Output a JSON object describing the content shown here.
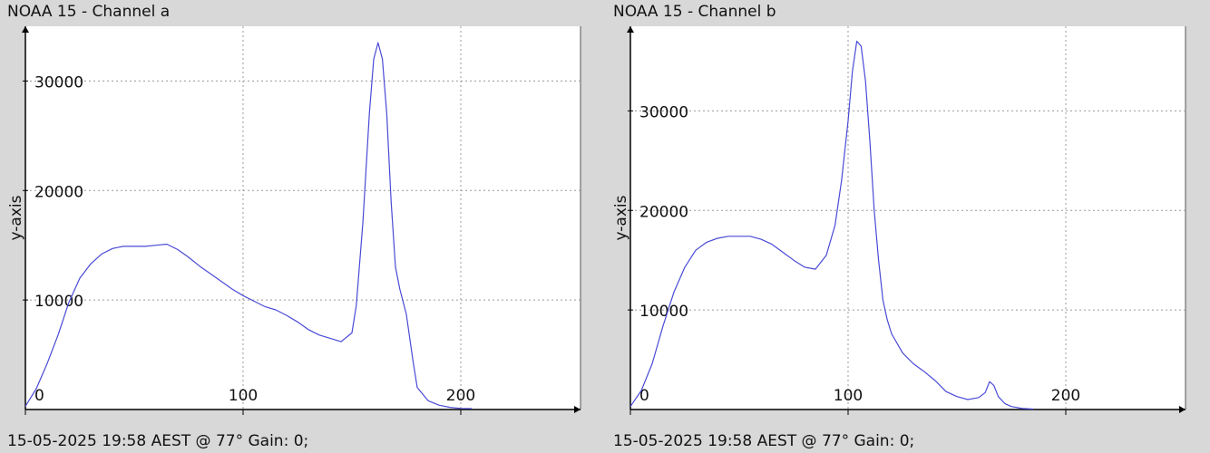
{
  "panels": [
    {
      "title": "NOAA 15 - Channel a",
      "footer": "15-05-2025 19:58 AEST @ 77° Gain: 0;"
    },
    {
      "title": "NOAA 15 - Channel b",
      "footer": "15-05-2025 19:58 AEST @ 77° Gain: 0;"
    }
  ],
  "colors": {
    "series": "#4a4ad6",
    "grid": "#9a9a9a",
    "axis": "#000000",
    "plot_bg": "#ffffff",
    "window_bg": "#d8d8d8"
  },
  "chart_data": [
    {
      "type": "line",
      "title": "NOAA 15 - Channel a",
      "xlabel": "",
      "ylabel": "y-axis",
      "xlim": [
        0,
        255
      ],
      "ylim": [
        0,
        35000
      ],
      "xticks": [
        0,
        100,
        200
      ],
      "yticks": [
        10000,
        20000,
        30000
      ],
      "grid": true,
      "series": [
        {
          "x": [
            0,
            5,
            10,
            15,
            20,
            25,
            30,
            35,
            40,
            45,
            50,
            55,
            60,
            65,
            70,
            75,
            80,
            85,
            90,
            95,
            100,
            105,
            110,
            115,
            120,
            125,
            130,
            135,
            140,
            145,
            150,
            152,
            155,
            158,
            160,
            162,
            164,
            166,
            168,
            170,
            172,
            175,
            178,
            180,
            185,
            190,
            195,
            200,
            205
          ],
          "values": [
            300,
            1900,
            4200,
            6800,
            9800,
            12000,
            13300,
            14200,
            14700,
            14900,
            14900,
            14900,
            15000,
            15100,
            14600,
            13900,
            13100,
            12400,
            11700,
            11000,
            10400,
            9900,
            9400,
            9100,
            8600,
            8000,
            7300,
            6800,
            6500,
            6200,
            7000,
            9500,
            17000,
            27000,
            32000,
            33500,
            32000,
            27000,
            19000,
            13000,
            11000,
            8700,
            4500,
            2000,
            800,
            400,
            200,
            100,
            80
          ]
        }
      ]
    },
    {
      "type": "line",
      "title": "NOAA 15 - Channel b",
      "xlabel": "",
      "ylabel": "y-axis",
      "xlim": [
        0,
        255
      ],
      "ylim": [
        0,
        38500
      ],
      "xticks": [
        0,
        100,
        200
      ],
      "yticks": [
        10000,
        20000,
        30000
      ],
      "grid": true,
      "series": [
        {
          "x": [
            0,
            5,
            10,
            15,
            20,
            25,
            30,
            35,
            40,
            45,
            50,
            55,
            60,
            65,
            70,
            75,
            80,
            85,
            90,
            94,
            97,
            100,
            102,
            104,
            106,
            108,
            110,
            112,
            114,
            116,
            118,
            120,
            125,
            130,
            135,
            140,
            145,
            150,
            155,
            160,
            163,
            165,
            167,
            169,
            172,
            175,
            180,
            185
          ],
          "values": [
            300,
            1900,
            4600,
            8400,
            11800,
            14300,
            16000,
            16800,
            17200,
            17400,
            17400,
            17400,
            17100,
            16600,
            15800,
            15000,
            14300,
            14100,
            15500,
            18500,
            23000,
            29000,
            34000,
            37000,
            36500,
            33000,
            27000,
            20000,
            15000,
            11000,
            9000,
            7600,
            5700,
            4600,
            3800,
            2900,
            1800,
            1300,
            1000,
            1200,
            1700,
            2800,
            2400,
            1300,
            600,
            300,
            100,
            50
          ]
        }
      ]
    }
  ]
}
